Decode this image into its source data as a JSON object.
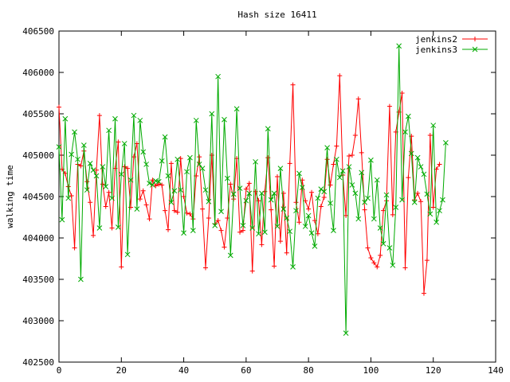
{
  "chart_data": {
    "type": "line",
    "title": "Hash size 16411",
    "xlabel": "",
    "ylabel": "walking time",
    "xlim": [
      0,
      140
    ],
    "ylim": [
      402500,
      406500
    ],
    "xticks": [
      0,
      20,
      40,
      60,
      80,
      100,
      120,
      140
    ],
    "yticks": [
      402500,
      403000,
      403500,
      404000,
      404500,
      405000,
      405500,
      406000,
      406500
    ],
    "grid": false,
    "legend_position": "top-right",
    "colors": {
      "jenkins2": "#ff0000",
      "jenkins3": "#00aa00"
    },
    "series": [
      {
        "name": "jenkins2",
        "marker": "plus",
        "x_start": 0,
        "values": [
          405580,
          404830,
          404780,
          404620,
          404510,
          403880,
          404890,
          404870,
          405050,
          404680,
          404430,
          404030,
          404820,
          405480,
          404650,
          404380,
          404550,
          404120,
          404840,
          405160,
          403650,
          404860,
          404840,
          404370,
          404980,
          405140,
          404470,
          404570,
          404400,
          404230,
          404700,
          404630,
          404650,
          404640,
          404330,
          404100,
          404900,
          404330,
          404310,
          404960,
          404500,
          404300,
          404290,
          404230,
          404750,
          404980,
          404350,
          403640,
          404240,
          405000,
          404170,
          404210,
          404090,
          403890,
          404240,
          404650,
          404470,
          404960,
          404070,
          404090,
          404590,
          404660,
          403600,
          404560,
          404450,
          403920,
          404560,
          404970,
          404340,
          403660,
          404740,
          403960,
          404540,
          403820,
          404900,
          405850,
          404430,
          404190,
          404700,
          404450,
          404350,
          404550,
          404210,
          404050,
          404380,
          404490,
          404950,
          404640,
          404890,
          405110,
          405960,
          404760,
          404270,
          404990,
          405000,
          405240,
          405680,
          405030,
          404340,
          403880,
          403760,
          403700,
          403650,
          403790,
          404330,
          404450,
          405590,
          404280,
          405280,
          405520,
          405750,
          403640,
          404730,
          405230,
          404460,
          404540,
          404440,
          403330,
          403730,
          405240,
          404370,
          404830,
          404890
        ]
      },
      {
        "name": "jenkins3",
        "marker": "x",
        "x_start": 0,
        "values": [
          405100,
          404220,
          405440,
          404480,
          405010,
          405280,
          404950,
          403500,
          405120,
          404580,
          404900,
          404820,
          404750,
          404120,
          404860,
          404620,
          405300,
          404480,
          405440,
          404130,
          404770,
          405140,
          403800,
          404700,
          405480,
          404350,
          405420,
          405040,
          404890,
          404660,
          404640,
          404690,
          404680,
          404930,
          405220,
          404750,
          404430,
          404570,
          404950,
          404580,
          404060,
          404800,
          404970,
          404090,
          405420,
          404890,
          404840,
          404580,
          404440,
          405500,
          404150,
          405950,
          404320,
          405430,
          404720,
          403790,
          404530,
          405560,
          404600,
          404150,
          404450,
          404540,
          404120,
          404920,
          404050,
          404540,
          404070,
          405320,
          404460,
          404540,
          404140,
          404840,
          404350,
          404240,
          404080,
          403650,
          404330,
          404780,
          404610,
          404140,
          404270,
          404060,
          403900,
          404480,
          404590,
          404560,
          405090,
          404420,
          404090,
          404950,
          404730,
          404810,
          402850,
          404860,
          404640,
          404540,
          404230,
          404790,
          404430,
          404480,
          404940,
          404230,
          404700,
          404120,
          403930,
          404520,
          403880,
          403670,
          404370,
          406320,
          404460,
          405280,
          405470,
          405020,
          404430,
          404970,
          404860,
          404770,
          404530,
          404290,
          405360,
          404190,
          404330,
          404460,
          405150
        ]
      }
    ]
  }
}
